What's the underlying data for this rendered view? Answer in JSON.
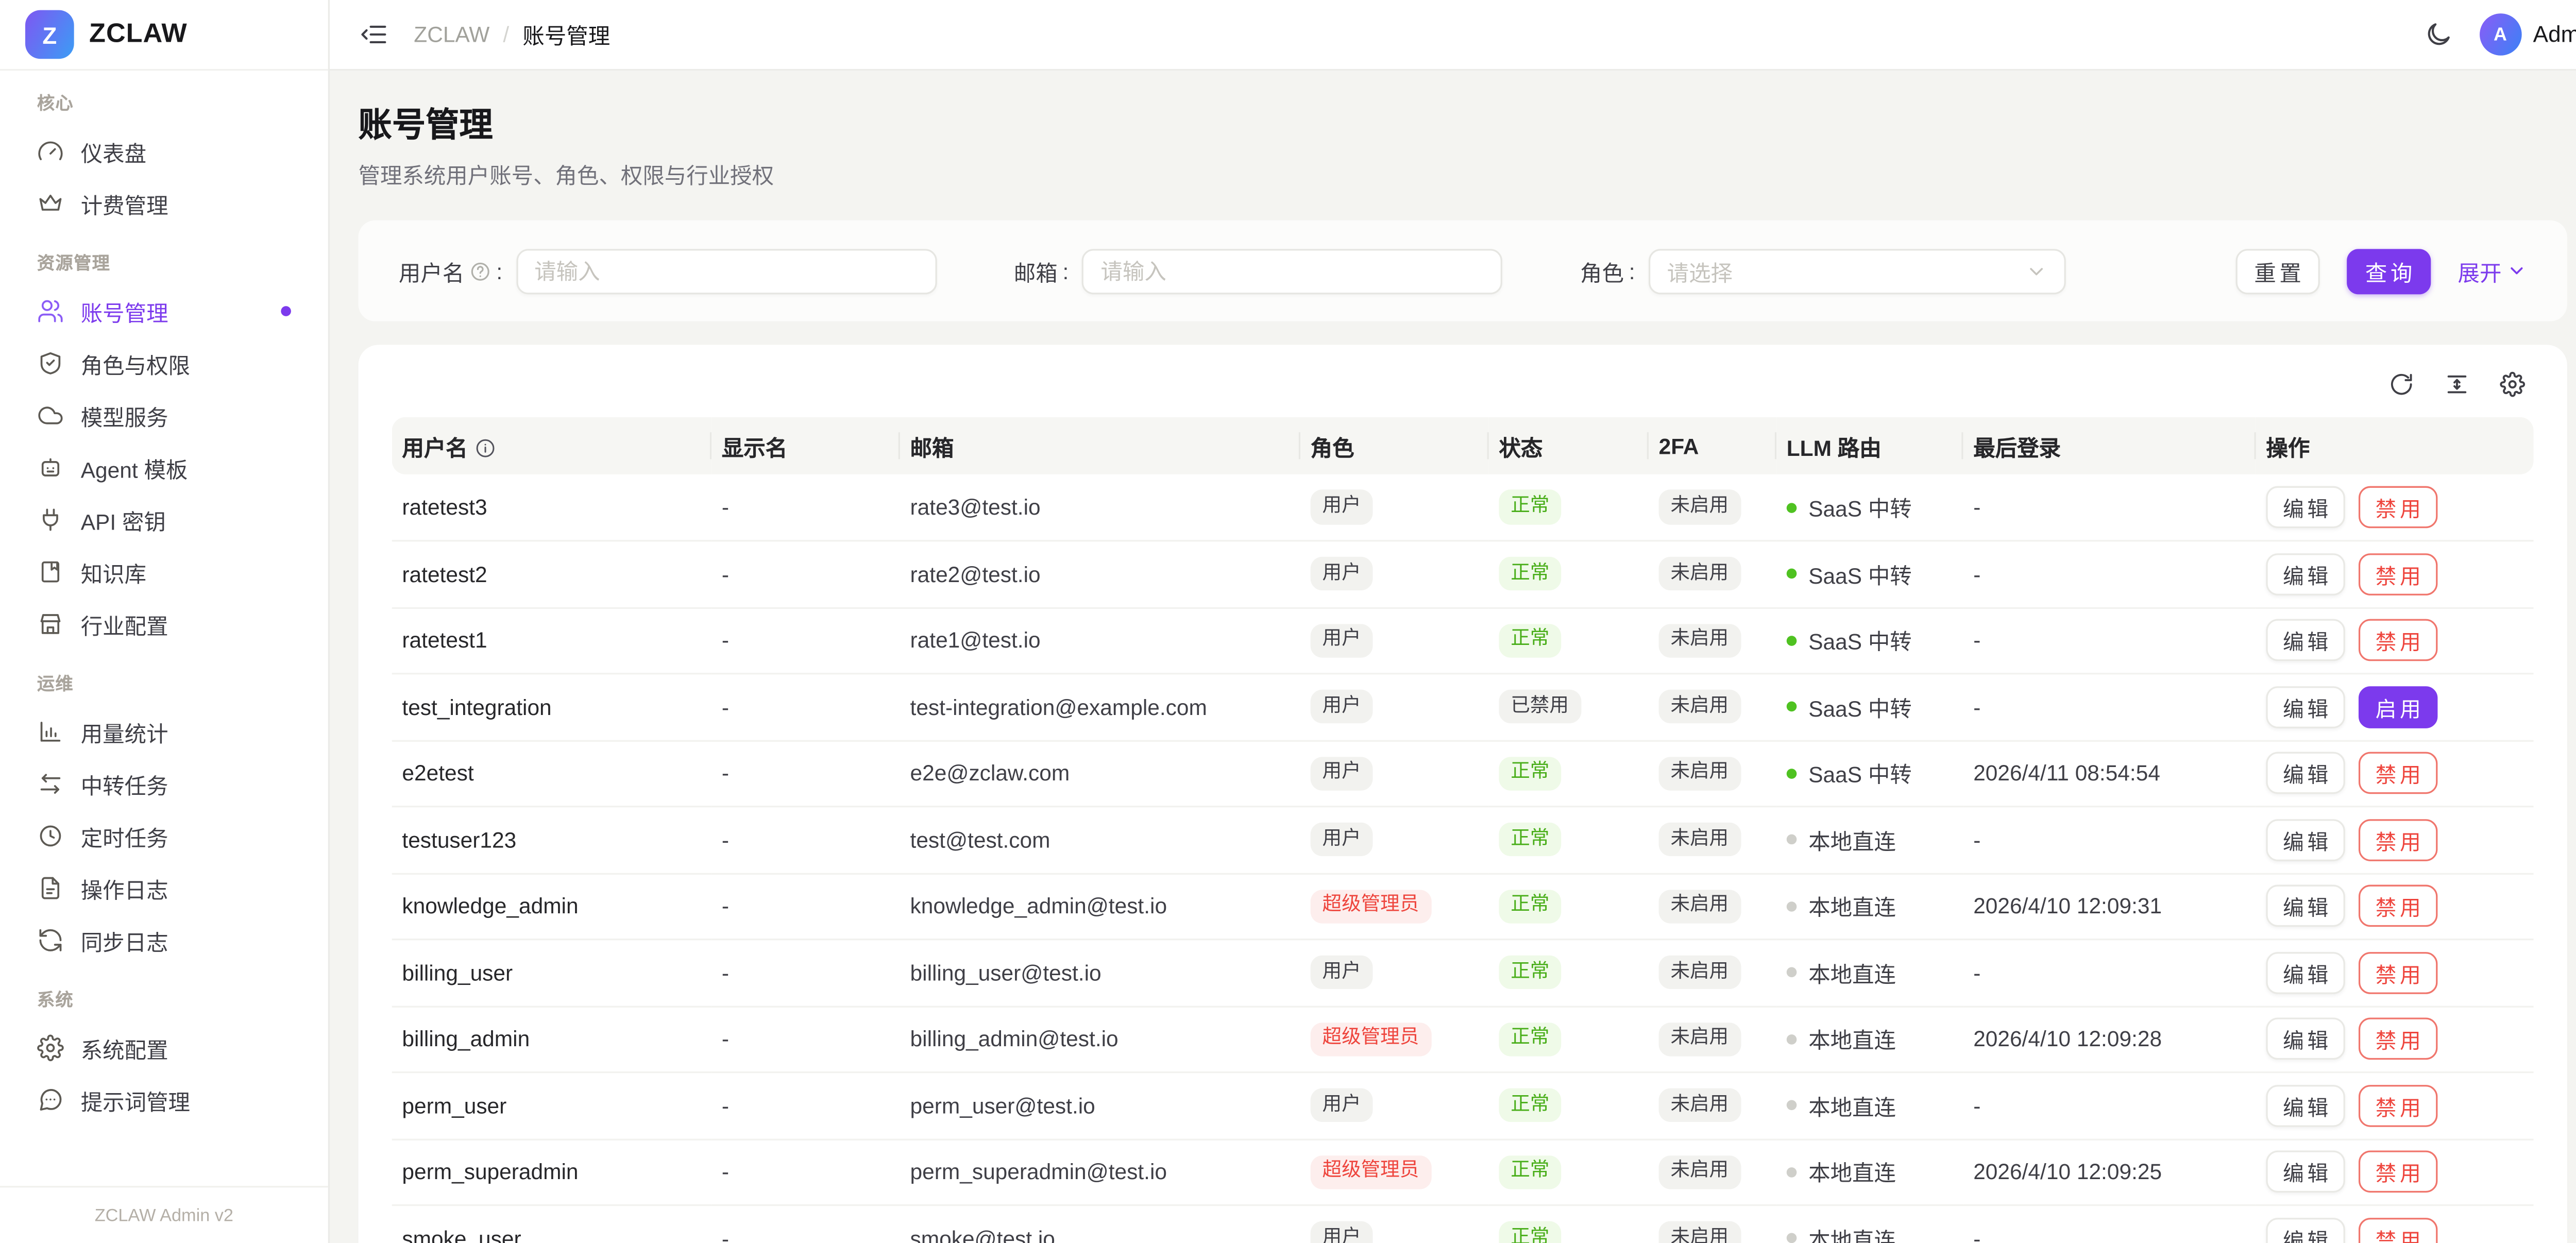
{
  "app": {
    "brand": "ZCLAW",
    "logo_letter": "Z",
    "version": "ZCLAW Admin v2"
  },
  "topbar": {
    "breadcrumb": {
      "root": "ZCLAW",
      "separator": "/",
      "current": "账号管理"
    },
    "user": {
      "name": "Admin",
      "initial": "A"
    }
  },
  "sidebar": {
    "groups": [
      {
        "label": "核心",
        "items": [
          {
            "label": "仪表盘",
            "icon": "gauge",
            "active": false
          },
          {
            "label": "计费管理",
            "icon": "crown",
            "active": false
          }
        ]
      },
      {
        "label": "资源管理",
        "items": [
          {
            "label": "账号管理",
            "icon": "users",
            "active": true
          },
          {
            "label": "角色与权限",
            "icon": "shield",
            "active": false
          },
          {
            "label": "模型服务",
            "icon": "cloud",
            "active": false
          },
          {
            "label": "Agent 模板",
            "icon": "bot",
            "active": false
          },
          {
            "label": "API 密钥",
            "icon": "plug",
            "active": false
          },
          {
            "label": "知识库",
            "icon": "book",
            "active": false
          },
          {
            "label": "行业配置",
            "icon": "store",
            "active": false
          }
        ]
      },
      {
        "label": "运维",
        "items": [
          {
            "label": "用量统计",
            "icon": "chart",
            "active": false
          },
          {
            "label": "中转任务",
            "icon": "swap",
            "active": false
          },
          {
            "label": "定时任务",
            "icon": "clock",
            "active": false
          },
          {
            "label": "操作日志",
            "icon": "file",
            "active": false
          },
          {
            "label": "同步日志",
            "icon": "sync",
            "active": false
          }
        ]
      },
      {
        "label": "系统",
        "items": [
          {
            "label": "系统配置",
            "icon": "gear",
            "active": false
          },
          {
            "label": "提示词管理",
            "icon": "chat",
            "active": false
          }
        ]
      }
    ]
  },
  "page": {
    "title": "账号管理",
    "subtitle": "管理系统用户账号、角色、权限与行业授权"
  },
  "filters": {
    "colon": ":",
    "username": {
      "label": "用户名",
      "placeholder": "请输入"
    },
    "email": {
      "label": "邮箱",
      "placeholder": "请输入"
    },
    "role": {
      "label": "角色",
      "placeholder": "请选择"
    },
    "reset": "重置",
    "search": "查询",
    "expand": "展开"
  },
  "table": {
    "columns": [
      "用户名",
      "显示名",
      "邮箱",
      "角色",
      "状态",
      "2FA",
      "LLM 路由",
      "最后登录",
      "操作"
    ],
    "actions": {
      "edit": "编辑",
      "disable": "禁用",
      "enable": "启用"
    },
    "rows": [
      {
        "username": "ratetest3",
        "display_name": "-",
        "email": "rate3@test.io",
        "role": "用户",
        "role_type": "user",
        "status": "正常",
        "status_type": "normal",
        "twofa": "未启用",
        "route": "SaaS 中转",
        "route_type": "saas",
        "last_login": "-",
        "toggle": "disable"
      },
      {
        "username": "ratetest2",
        "display_name": "-",
        "email": "rate2@test.io",
        "role": "用户",
        "role_type": "user",
        "status": "正常",
        "status_type": "normal",
        "twofa": "未启用",
        "route": "SaaS 中转",
        "route_type": "saas",
        "last_login": "-",
        "toggle": "disable"
      },
      {
        "username": "ratetest1",
        "display_name": "-",
        "email": "rate1@test.io",
        "role": "用户",
        "role_type": "user",
        "status": "正常",
        "status_type": "normal",
        "twofa": "未启用",
        "route": "SaaS 中转",
        "route_type": "saas",
        "last_login": "-",
        "toggle": "disable"
      },
      {
        "username": "test_integration",
        "display_name": "-",
        "email": "test-integration@example.com",
        "role": "用户",
        "role_type": "user",
        "status": "已禁用",
        "status_type": "disabled",
        "twofa": "未启用",
        "route": "SaaS 中转",
        "route_type": "saas",
        "last_login": "-",
        "toggle": "enable"
      },
      {
        "username": "e2etest",
        "display_name": "-",
        "email": "e2e@zclaw.com",
        "role": "用户",
        "role_type": "user",
        "status": "正常",
        "status_type": "normal",
        "twofa": "未启用",
        "route": "SaaS 中转",
        "route_type": "saas",
        "last_login": "2026/4/11 08:54:54",
        "toggle": "disable"
      },
      {
        "username": "testuser123",
        "display_name": "-",
        "email": "test@test.com",
        "role": "用户",
        "role_type": "user",
        "status": "正常",
        "status_type": "normal",
        "twofa": "未启用",
        "route": "本地直连",
        "route_type": "local",
        "last_login": "-",
        "toggle": "disable"
      },
      {
        "username": "knowledge_admin",
        "display_name": "-",
        "email": "knowledge_admin@test.io",
        "role": "超级管理员",
        "role_type": "superadmin",
        "status": "正常",
        "status_type": "normal",
        "twofa": "未启用",
        "route": "本地直连",
        "route_type": "local",
        "last_login": "2026/4/10 12:09:31",
        "toggle": "disable"
      },
      {
        "username": "billing_user",
        "display_name": "-",
        "email": "billing_user@test.io",
        "role": "用户",
        "role_type": "user",
        "status": "正常",
        "status_type": "normal",
        "twofa": "未启用",
        "route": "本地直连",
        "route_type": "local",
        "last_login": "-",
        "toggle": "disable"
      },
      {
        "username": "billing_admin",
        "display_name": "-",
        "email": "billing_admin@test.io",
        "role": "超级管理员",
        "role_type": "superadmin",
        "status": "正常",
        "status_type": "normal",
        "twofa": "未启用",
        "route": "本地直连",
        "route_type": "local",
        "last_login": "2026/4/10 12:09:28",
        "toggle": "disable"
      },
      {
        "username": "perm_user",
        "display_name": "-",
        "email": "perm_user@test.io",
        "role": "用户",
        "role_type": "user",
        "status": "正常",
        "status_type": "normal",
        "twofa": "未启用",
        "route": "本地直连",
        "route_type": "local",
        "last_login": "-",
        "toggle": "disable"
      },
      {
        "username": "perm_superadmin",
        "display_name": "-",
        "email": "perm_superadmin@test.io",
        "role": "超级管理员",
        "role_type": "superadmin",
        "status": "正常",
        "status_type": "normal",
        "twofa": "未启用",
        "route": "本地直连",
        "route_type": "local",
        "last_login": "2026/4/10 12:09:25",
        "toggle": "disable"
      },
      {
        "username": "smoke_user",
        "display_name": "-",
        "email": "smoke@test.io",
        "role": "用户",
        "role_type": "user",
        "status": "正常",
        "status_type": "normal",
        "twofa": "未启用",
        "route": "本地直连",
        "route_type": "local",
        "last_login": "-",
        "toggle": "disable"
      }
    ]
  },
  "colors": {
    "accent": "#7c3aed",
    "success": "#47ad17",
    "danger": "#ee453d",
    "route_saas_dot": "#4fc221",
    "route_local_dot": "#cfcfca",
    "avatar_gradient_start": "#8a5cf6",
    "avatar_gradient_end": "#3b82f6"
  }
}
